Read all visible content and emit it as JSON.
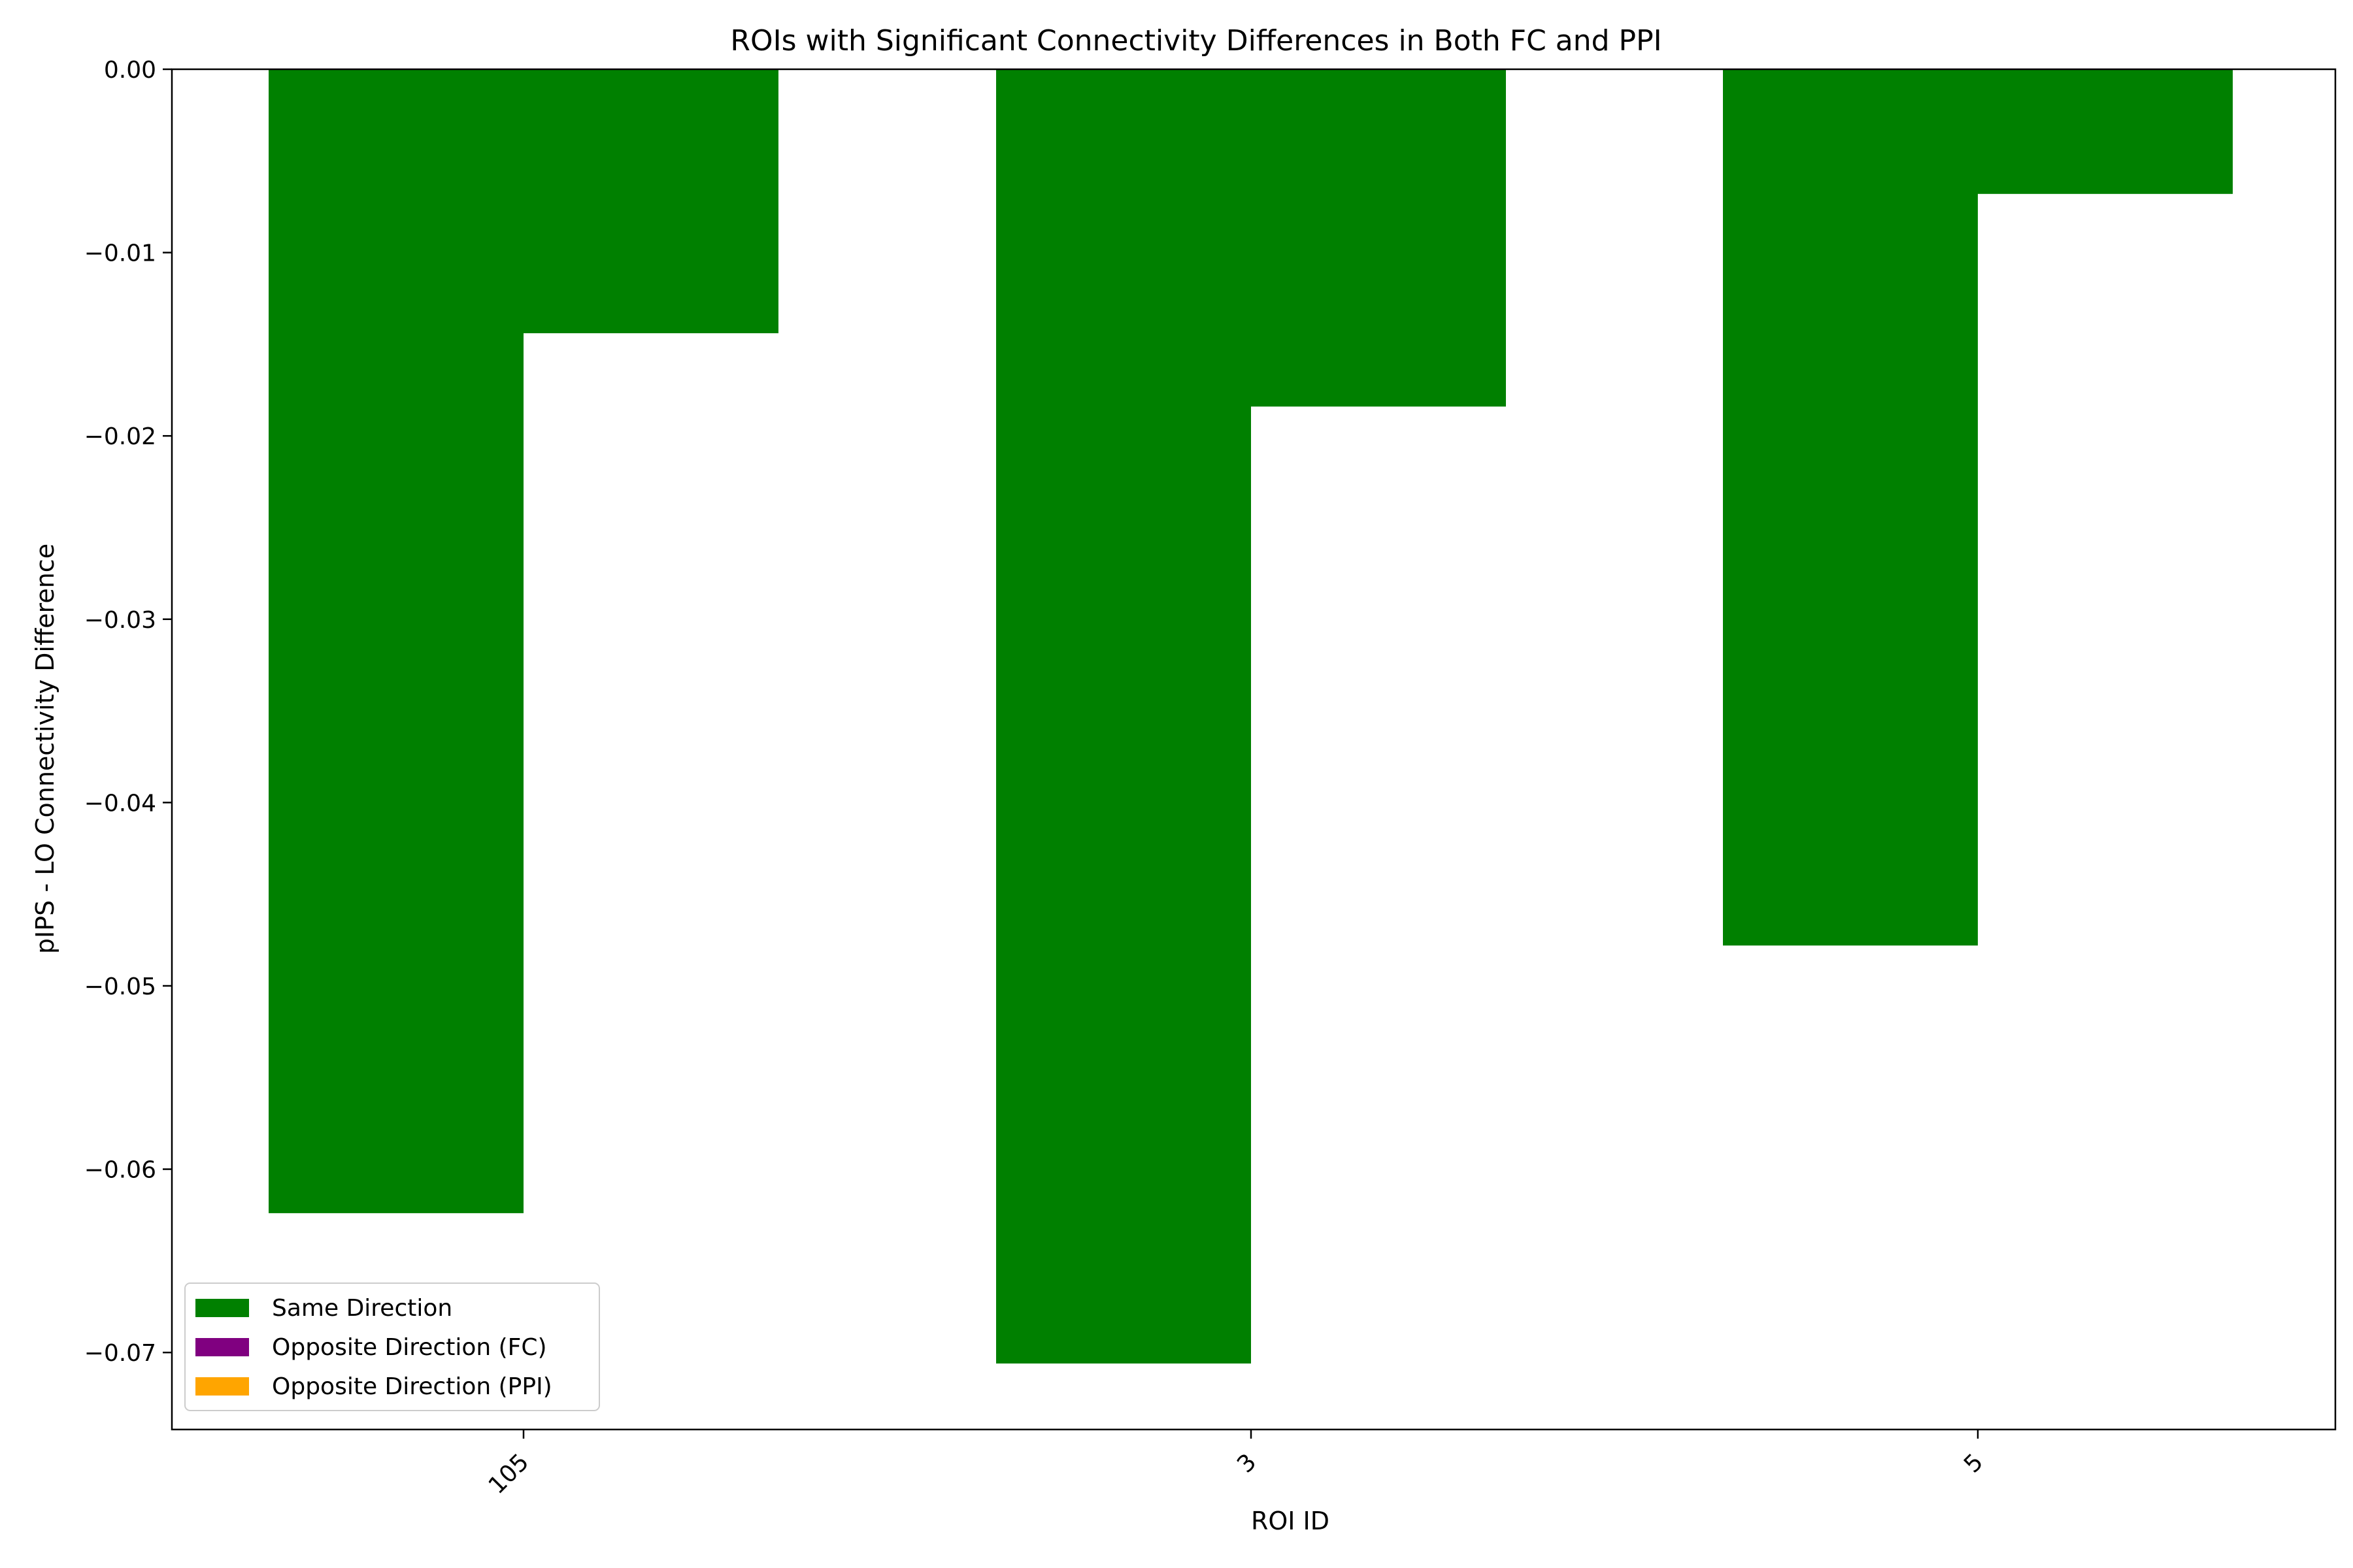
{
  "chart_data": {
    "type": "bar",
    "title": "ROIs with Significant Connectivity Differences in Both FC and PPI",
    "xlabel": "ROI ID",
    "ylabel": "pIPS - LO Connectivity Difference",
    "categories": [
      "105",
      "3",
      "5"
    ],
    "series": [
      {
        "name": "Same Direction",
        "color": "#008000",
        "values": [
          -0.0624,
          -0.0706,
          -0.0478
        ]
      },
      {
        "name": "Same Direction",
        "color": "#008000",
        "values": [
          -0.0144,
          -0.0184,
          -0.0068
        ]
      }
    ],
    "legend_entries": [
      {
        "label": "Same Direction",
        "color": "#008000"
      },
      {
        "label": "Opposite Direction (FC)",
        "color": "#800080"
      },
      {
        "label": "Opposite Direction (PPI)",
        "color": "#FFA500"
      }
    ],
    "yticks": [
      0.0,
      -0.01,
      -0.02,
      -0.03,
      -0.04,
      -0.05,
      -0.06,
      -0.07
    ],
    "ytick_labels": [
      "0.00",
      "−0.01",
      "−0.02",
      "−0.03",
      "−0.04",
      "−0.05",
      "−0.06",
      "−0.07"
    ],
    "ylim": [
      -0.0742,
      0.0
    ],
    "grid": false,
    "legend_position": "lower-left"
  }
}
